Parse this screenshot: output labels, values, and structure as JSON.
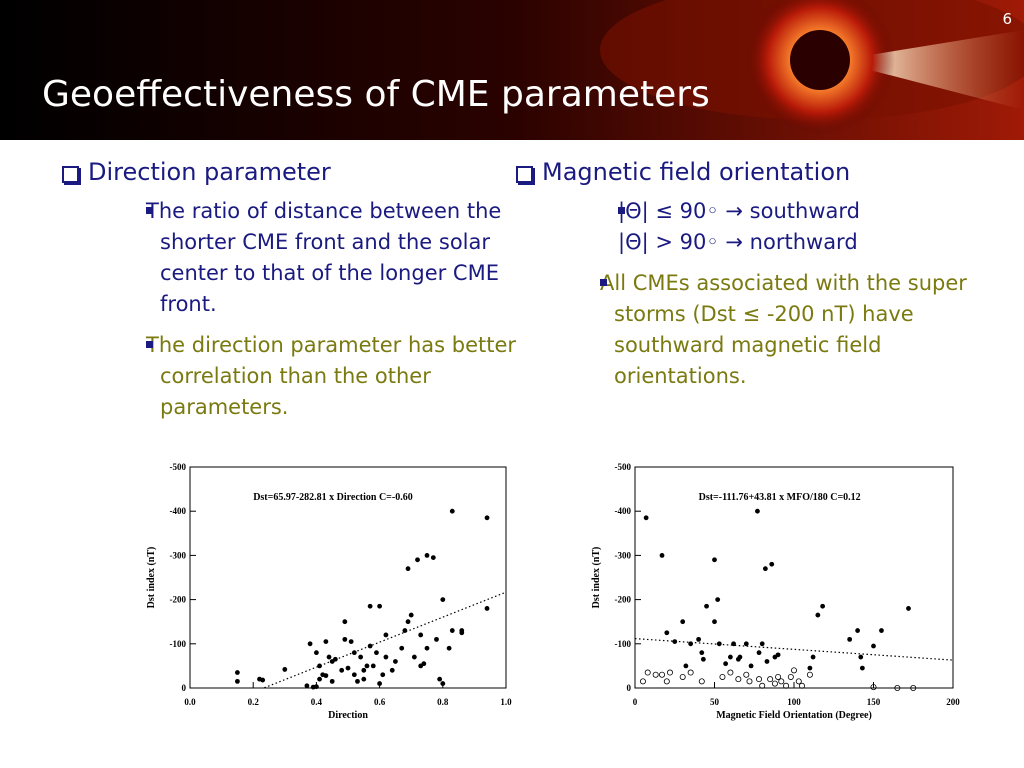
{
  "title": "Geoeffectiveness of CME parameters",
  "page_number": "6",
  "left": {
    "heading": "Direction parameter",
    "bullets": [
      "The ratio of distance between the shorter CME front and the solar center to that of the longer CME front.",
      "The direction parameter has better correlation than the other parameters."
    ]
  },
  "right": {
    "heading": "Magnetic field orientation",
    "bullets": [
      [
        "|Θ| ≤ 90◦ → southward",
        "|Θ| > 90◦ → northward"
      ],
      "All CMEs associated with the super storms (Dst ≤ -200 nT) have southward magnetic field orientations."
    ]
  },
  "chart_data": [
    {
      "type": "scatter",
      "annotation": "Dst=65.97-282.81 x Direction  C=-0.60",
      "x_label": "Direction",
      "y_label": "Dst index (nT)",
      "xlim": [
        0,
        1
      ],
      "ylim": [
        0,
        -500
      ],
      "xticks": [
        {
          "value": 0,
          "label": "0.0"
        },
        0.2,
        0.4,
        0.6,
        0.8,
        {
          "value": 1,
          "label": "1.0"
        }
      ],
      "yticks": [
        0,
        -100,
        -200,
        -300,
        -400,
        -500
      ],
      "trend_line": {
        "intercept": 65.97,
        "slope": -282.81
      },
      "series": [
        {
          "marker": "filled",
          "color": "#000000",
          "x": [
            0.15,
            0.15,
            0.22,
            0.23,
            0.3,
            0.37,
            0.38,
            0.39,
            0.4,
            0.4,
            0.41,
            0.41,
            0.42,
            0.43,
            0.43,
            0.44,
            0.45,
            0.45,
            0.46,
            0.48,
            0.49,
            0.49,
            0.5,
            0.51,
            0.52,
            0.52,
            0.53,
            0.54,
            0.55,
            0.55,
            0.56,
            0.57,
            0.57,
            0.58,
            0.59,
            0.6,
            0.6,
            0.61,
            0.62,
            0.62,
            0.64,
            0.65,
            0.67,
            0.68,
            0.69,
            0.69,
            0.7,
            0.71,
            0.72,
            0.73,
            0.73,
            0.74,
            0.75,
            0.75,
            0.77,
            0.78,
            0.79,
            0.8,
            0.8,
            0.82,
            0.83,
            0.83,
            0.86,
            0.86,
            0.94,
            0.94
          ],
          "values": [
            -35,
            -15,
            -20,
            -18,
            -42,
            -5,
            -100,
            -2,
            -3,
            -80,
            -20,
            -50,
            -30,
            -105,
            -28,
            -70,
            -60,
            -15,
            -65,
            -40,
            -110,
            -150,
            -45,
            -105,
            -30,
            -80,
            -15,
            -70,
            -40,
            -20,
            -50,
            -95,
            -185,
            -50,
            -80,
            -185,
            -10,
            -30,
            -120,
            -70,
            -40,
            -60,
            -90,
            -130,
            -270,
            -150,
            -165,
            -70,
            -290,
            -120,
            -50,
            -55,
            -300,
            -90,
            -295,
            -110,
            -20,
            -200,
            -10,
            -90,
            -400,
            -130,
            -130,
            -125,
            -385,
            -180
          ]
        }
      ]
    },
    {
      "type": "scatter",
      "annotation": "Dst=-111.76+43.81 x MFO/180  C=0.12",
      "x_label": "Magnetic Field Orientation (Degree)",
      "y_label": "Dst index (nT)",
      "xlim": [
        0,
        200
      ],
      "ylim": [
        0,
        -500
      ],
      "xticks": [
        0,
        50,
        100,
        150,
        200
      ],
      "yticks": [
        0,
        -100,
        -200,
        -300,
        -400,
        -500
      ],
      "trend_line": {
        "intercept": -111.76,
        "slope": 43.81,
        "divisor": 180
      },
      "series": [
        {
          "marker": "filled",
          "color": "#000000",
          "x": [
            7,
            17,
            20,
            25,
            30,
            32,
            35,
            40,
            42,
            43,
            45,
            50,
            50,
            52,
            53,
            57,
            60,
            62,
            65,
            66,
            70,
            73,
            77,
            78,
            80,
            82,
            83,
            86,
            88,
            90,
            110,
            112,
            115,
            118,
            135,
            140,
            142,
            143,
            150,
            155,
            172
          ],
          "values": [
            -385,
            -300,
            -125,
            -105,
            -150,
            -50,
            -100,
            -110,
            -80,
            -65,
            -185,
            -290,
            -150,
            -200,
            -100,
            -55,
            -70,
            -100,
            -65,
            -70,
            -100,
            -50,
            -400,
            -80,
            -100,
            -270,
            -60,
            -280,
            -70,
            -75,
            -45,
            -70,
            -165,
            -185,
            -110,
            -130,
            -70,
            -45,
            -95,
            -130,
            -180
          ]
        },
        {
          "marker": "open",
          "color": "#000000",
          "x": [
            5,
            8,
            13,
            17,
            20,
            22,
            30,
            35,
            42,
            55,
            60,
            65,
            70,
            72,
            78,
            80,
            85,
            88,
            90,
            92,
            95,
            98,
            100,
            103,
            105,
            110,
            150,
            165,
            175
          ],
          "values": [
            -15,
            -35,
            -30,
            -30,
            -15,
            -35,
            -25,
            -35,
            -15,
            -25,
            -35,
            -20,
            -30,
            -15,
            -20,
            -5,
            -20,
            -10,
            -25,
            -15,
            -5,
            -25,
            -40,
            -15,
            -5,
            -30,
            -2,
            0,
            0
          ]
        }
      ]
    }
  ]
}
